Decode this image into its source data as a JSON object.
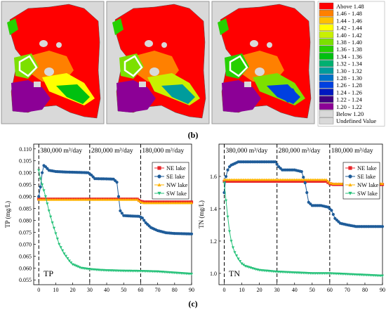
{
  "colors": {
    "ne_lake": "#e8262a",
    "se_lake": "#1f5c99",
    "nw_lake": "#ffb300",
    "sw_lake": "#27c27a",
    "map_panel_bg": "#d9d9d9",
    "map_colors": [
      "#ff0000",
      "#ff8000",
      "#ffc000",
      "#ffff00",
      "#c8f000",
      "#7ce000",
      "#26d000",
      "#00c010",
      "#00b070",
      "#009c9c",
      "#0070c8",
      "#0040e0",
      "#0018c0",
      "#400080",
      "#8c0096",
      "#d9d9d9"
    ]
  },
  "maps": {
    "legend_items": [
      "Above 1.48",
      "1.46 - 1.48",
      "1.44 - 1.46",
      "1.42 - 1.44",
      "1.40 - 1.42",
      "1.38 - 1.40",
      "1.36 - 1.38",
      "1.34 - 1.36",
      "1.32 - 1.34",
      "1.30 - 1.32",
      "1.28 - 1.30",
      "1.26 - 1.28",
      "1.24 - 1.26",
      "1.22 - 1.24",
      "1.20 - 1.22",
      "Below 1.20",
      "Undefined Value"
    ],
    "panel_label": "(b)"
  },
  "figure_c_label": "(c)",
  "chart_data": [
    {
      "type": "line",
      "ylabel": "TP (mg/L)",
      "corner_label": "TP",
      "x_ticks": [
        0,
        10,
        20,
        30,
        40,
        50,
        60,
        70,
        80,
        90
      ],
      "y_ticks": [
        0.055,
        0.06,
        0.065,
        0.07,
        0.075,
        0.08,
        0.085,
        0.09,
        0.095,
        0.1,
        0.105,
        0.11
      ],
      "xlim": [
        -3,
        90
      ],
      "ylim": [
        0.053,
        0.112
      ],
      "phase_lines": [
        0,
        30,
        60
      ],
      "phase_labels": [
        "380,000 m³/day",
        "280,000 m³/day",
        "180,000 m³/day"
      ],
      "series": [
        {
          "name": "NE lake",
          "marker": "square",
          "x": [
            0,
            2,
            4,
            10,
            20,
            30,
            40,
            50,
            58,
            60,
            62,
            70,
            80,
            90
          ],
          "values": [
            0.089,
            0.0889,
            0.0889,
            0.0889,
            0.0889,
            0.0889,
            0.0889,
            0.0889,
            0.0889,
            0.088,
            0.0877,
            0.0877,
            0.0877,
            0.0877
          ]
        },
        {
          "name": "SE lake",
          "marker": "circle",
          "x": [
            0,
            1,
            2,
            3,
            4,
            6,
            10,
            15,
            20,
            25,
            29,
            31,
            33,
            40,
            44,
            46,
            48,
            50,
            55,
            59,
            61,
            63,
            66,
            70,
            75,
            80,
            90
          ],
          "values": [
            0.09,
            0.094,
            0.1,
            0.103,
            0.1025,
            0.101,
            0.1005,
            0.1003,
            0.1002,
            0.1001,
            0.1,
            0.099,
            0.0975,
            0.0974,
            0.0973,
            0.096,
            0.084,
            0.082,
            0.0818,
            0.0817,
            0.081,
            0.079,
            0.077,
            0.0757,
            0.0748,
            0.0745,
            0.0743
          ]
        },
        {
          "name": "NW lake",
          "marker": "triangle",
          "x": [
            0,
            2,
            4,
            10,
            20,
            30,
            40,
            50,
            58,
            60,
            62,
            70,
            80,
            90
          ],
          "values": [
            0.0887,
            0.0887,
            0.0887,
            0.0887,
            0.0887,
            0.0887,
            0.0887,
            0.0887,
            0.0887,
            0.0877,
            0.0873,
            0.0873,
            0.0873,
            0.0873
          ]
        },
        {
          "name": "SW lake",
          "marker": "triangle-down",
          "x": [
            0,
            1,
            2,
            3,
            4,
            5,
            6,
            8,
            10,
            12,
            15,
            18,
            20,
            25,
            30,
            35,
            40,
            50,
            60,
            70,
            80,
            90
          ],
          "values": [
            0.101,
            0.0975,
            0.095,
            0.0925,
            0.09,
            0.087,
            0.084,
            0.079,
            0.0745,
            0.07,
            0.066,
            0.063,
            0.0615,
            0.06,
            0.0595,
            0.0592,
            0.059,
            0.0588,
            0.0587,
            0.0585,
            0.058,
            0.0575
          ]
        }
      ]
    },
    {
      "type": "line",
      "ylabel": "TN (mg/L)",
      "corner_label": "TN",
      "x_ticks": [
        0,
        10,
        20,
        30,
        40,
        50,
        60,
        70,
        80,
        90
      ],
      "y_ticks": [
        1.0,
        1.2,
        1.4,
        1.6
      ],
      "xlim": [
        -3,
        90
      ],
      "ylim": [
        0.93,
        1.8
      ],
      "phase_lines": [
        0,
        30,
        60
      ],
      "phase_labels": [
        "380,000 m³/day",
        "280,000 m³/day",
        "180,000 m³/day"
      ],
      "series": [
        {
          "name": "NE lake",
          "marker": "square",
          "x": [
            0,
            2,
            4,
            10,
            20,
            30,
            40,
            50,
            58,
            60,
            62,
            70,
            80,
            90
          ],
          "values": [
            1.57,
            1.57,
            1.57,
            1.57,
            1.57,
            1.57,
            1.57,
            1.57,
            1.57,
            1.555,
            1.55,
            1.55,
            1.55,
            1.55
          ]
        },
        {
          "name": "SE lake",
          "marker": "circle",
          "x": [
            0,
            1,
            2,
            3,
            4,
            6,
            8,
            10,
            20,
            29,
            31,
            33,
            40,
            44,
            46,
            48,
            50,
            55,
            59,
            61,
            63,
            66,
            70,
            75,
            80,
            90
          ],
          "values": [
            1.5,
            1.6,
            1.64,
            1.66,
            1.67,
            1.68,
            1.69,
            1.69,
            1.69,
            1.69,
            1.66,
            1.64,
            1.64,
            1.63,
            1.56,
            1.44,
            1.42,
            1.42,
            1.41,
            1.39,
            1.34,
            1.31,
            1.3,
            1.29,
            1.29,
            1.29
          ]
        },
        {
          "name": "NW lake",
          "marker": "triangle",
          "x": [
            0,
            2,
            4,
            10,
            20,
            30,
            40,
            50,
            58,
            60,
            62,
            70,
            80,
            90
          ],
          "values": [
            1.58,
            1.58,
            1.58,
            1.58,
            1.58,
            1.58,
            1.58,
            1.58,
            1.58,
            1.56,
            1.555,
            1.555,
            1.555,
            1.555
          ]
        },
        {
          "name": "SW lake",
          "marker": "triangle-down",
          "x": [
            0,
            1,
            2,
            3,
            4,
            5,
            6,
            8,
            10,
            12,
            15,
            18,
            20,
            25,
            30,
            40,
            50,
            60,
            70,
            80,
            90
          ],
          "values": [
            1.56,
            1.45,
            1.35,
            1.26,
            1.2,
            1.16,
            1.13,
            1.09,
            1.06,
            1.045,
            1.035,
            1.025,
            1.02,
            1.015,
            1.01,
            1.005,
            1.0,
            1.0,
            0.995,
            0.99,
            0.985
          ]
        }
      ]
    }
  ]
}
